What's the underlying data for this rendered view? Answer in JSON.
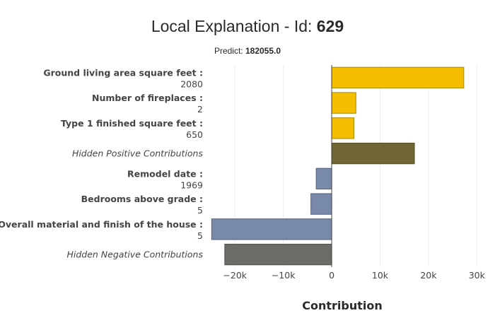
{
  "chart_data": {
    "type": "bar",
    "orientation": "horizontal",
    "title_prefix": "Local Explanation - Id: ",
    "title_id": "629",
    "subtitle_prefix": "Predict: ",
    "subtitle_value": "182055.0",
    "xlabel": "Contribution",
    "xlim": [
      -25000,
      32000
    ],
    "xticks": [
      {
        "value": -20000,
        "label": "−20k"
      },
      {
        "value": -10000,
        "label": "−10k"
      },
      {
        "value": 0,
        "label": "0"
      },
      {
        "value": 10000,
        "label": "10k"
      },
      {
        "value": 20000,
        "label": "20k"
      },
      {
        "value": 30000,
        "label": "30k"
      }
    ],
    "grid": true,
    "categories": [
      {
        "name": "Ground living area square feet :",
        "value_label": "2080",
        "contribution": 27300,
        "kind": "positive"
      },
      {
        "name": "Number of fireplaces :",
        "value_label": "2",
        "contribution": 5000,
        "kind": "positive"
      },
      {
        "name": "Type 1 finished square feet :",
        "value_label": "650",
        "contribution": 4600,
        "kind": "positive"
      },
      {
        "name": "Hidden Positive Contributions",
        "value_label": "",
        "contribution": 17100,
        "kind": "hidden-positive"
      },
      {
        "name": "Remodel date :",
        "value_label": "1969",
        "contribution": -3200,
        "kind": "negative"
      },
      {
        "name": "Bedrooms above grade :",
        "value_label": "5",
        "contribution": -4300,
        "kind": "negative"
      },
      {
        "name": "Overall material and finish of the house :",
        "value_label": "5",
        "contribution": -24800,
        "kind": "negative"
      },
      {
        "name": "Hidden Negative Contributions",
        "value_label": "",
        "contribution": -22100,
        "kind": "hidden-negative"
      }
    ],
    "colors": {
      "positive": "#f5bf00",
      "positive_border": "#a98800",
      "negative": "#7989aa",
      "negative_border": "#56637f",
      "hidden-positive": "#6f6535",
      "hidden-positive_border": "#544b25",
      "hidden-negative": "#6b6b67",
      "hidden-negative_border": "#4f4f4c"
    }
  }
}
